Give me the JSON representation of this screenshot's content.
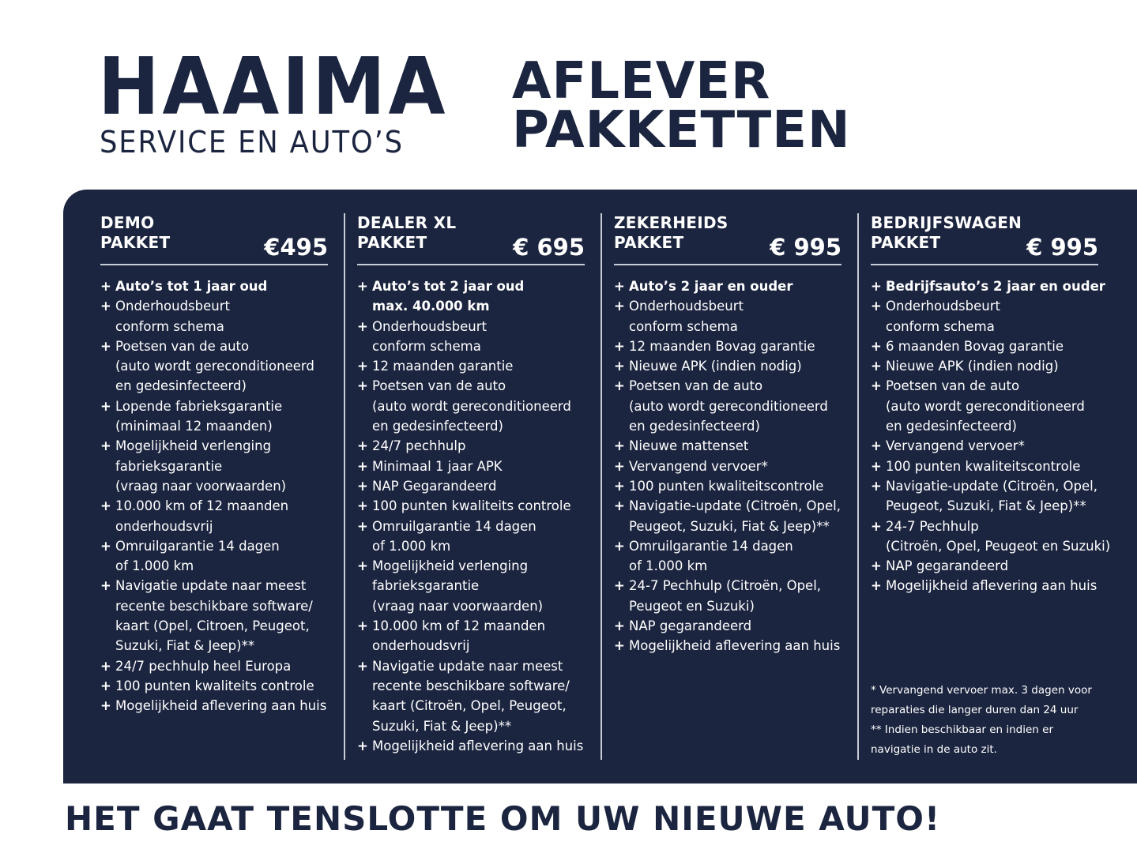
{
  "brand": {
    "name": "HAAIMA",
    "subtitle": "SERVICE EN AUTO’S"
  },
  "title": "AFLEVER\nPAKKETTEN",
  "colors": {
    "navy": "#1c2540",
    "divider": "#c8ccd6"
  },
  "packages": [
    {
      "name": "DEMO\nPAKKET",
      "price": "€495",
      "items": [
        "Auto’s tot 1 jaar oud",
        "Onderhoudsbeurt\nconform schema",
        "Poetsen van de auto\n(auto wordt gereconditioneerd\nen gedesinfecteerd)",
        "Lopende fabrieksgarantie\n(minimaal 12 maanden)",
        "Mogelijkheid verlenging\nfabrieksgarantie\n(vraag naar voorwaarden)",
        "10.000 km of 12 maanden\nonderhoudsvrij",
        "Omruilgarantie 14 dagen\nof 1.000 km",
        "Navigatie update naar meest\nrecente beschikbare software/\nkaart (Opel, Citroen,  Peugeot,\nSuzuki, Fiat & Jeep)**",
        "24/7 pechhulp heel Europa",
        "100 punten kwaliteits controle",
        "Mogelijkheid aflevering aan huis"
      ]
    },
    {
      "name": "DEALER XL\nPAKKET",
      "price": "€ 695",
      "items": [
        "Auto’s tot 2 jaar oud\nmax. 40.000 km",
        "Onderhoudsbeurt\nconform schema",
        "12 maanden garantie",
        "Poetsen van de auto\n(auto wordt gereconditioneerd\nen gedesinfecteerd)",
        "24/7 pechhulp",
        "Minimaal 1 jaar APK",
        "NAP Gegarandeerd",
        "100 punten kwaliteits controle",
        "Omruilgarantie 14 dagen\nof 1.000 km",
        "Mogelijkheid verlenging\nfabrieksgarantie\n(vraag naar voorwaarden)",
        "10.000 km of 12 maanden\nonderhoudsvrij",
        "Navigatie update naar meest\nrecente beschikbare software/\nkaart (Citroën, Opel, Peugeot,\nSuzuki, Fiat & Jeep)**",
        "Mogelijkheid aflevering aan huis"
      ]
    },
    {
      "name": "ZEKERHEIDS\nPAKKET",
      "price": "€ 995",
      "items": [
        "Auto’s 2 jaar en ouder",
        "Onderhoudsbeurt\nconform schema",
        "12 maanden Bovag garantie",
        "Nieuwe APK (indien nodig)",
        "Poetsen van de auto\n(auto wordt gereconditioneerd\nen gedesinfecteerd)",
        "Nieuwe mattenset",
        "Vervangend vervoer*",
        "100 punten kwaliteitscontrole",
        "Navigatie-update (Citroën, Opel,\nPeugeot, Suzuki, Fiat & Jeep)**",
        "Omruilgarantie 14 dagen\nof 1.000 km",
        "24-7 Pechhulp (Citroën, Opel,\nPeugeot en Suzuki)",
        "NAP gegarandeerd",
        "Mogelijkheid aflevering aan huis"
      ]
    },
    {
      "name": "BEDRIJFSWAGEN\nPAKKET",
      "price": "€ 995",
      "items": [
        "Bedrijfsauto’s 2 jaar en ouder",
        "Onderhoudsbeurt\nconform schema",
        "6 maanden Bovag garantie",
        "Nieuwe APK (indien nodig)",
        "Poetsen van de auto\n(auto wordt gereconditioneerd\nen gedesinfecteerd)",
        "Vervangend vervoer*",
        "100 punten kwaliteitscontrole",
        "Navigatie-update (Citroën, Opel,\nPeugeot, Suzuki, Fiat & Jeep)**",
        "24-7 Pechhulp\n(Citroën, Opel, Peugeot en Suzuki)",
        "NAP gegarandeerd",
        "Mogelijkheid aflevering aan huis"
      ]
    }
  ],
  "footnotes": "* Vervangend vervoer max. 3 dagen voor\n   reparaties die langer duren dan 24 uur\n** Indien beschikbaar en indien er\n     navigatie in de auto zit.",
  "tagline": "HET GAAT TENSLOTTE OM UW NIEUWE AUTO!"
}
